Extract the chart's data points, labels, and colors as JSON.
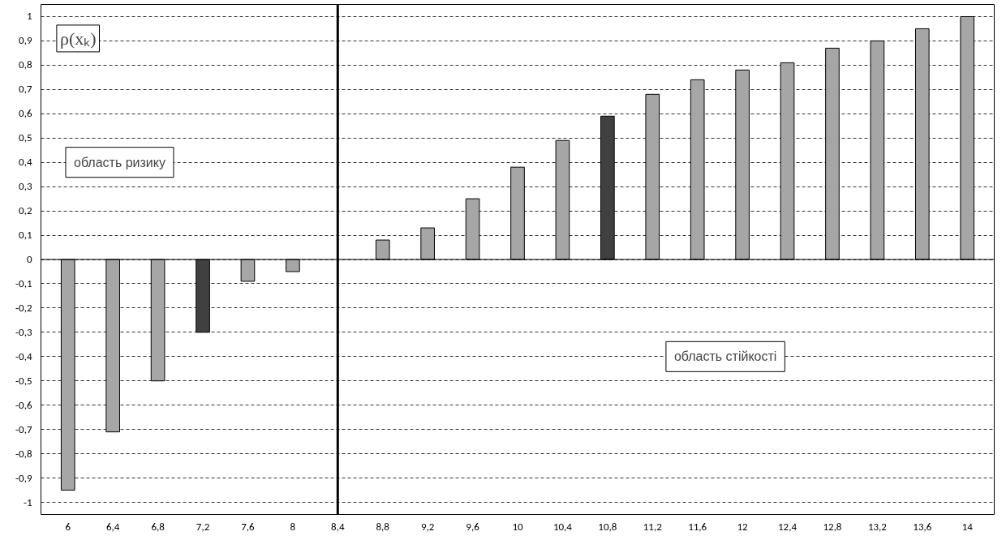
{
  "chart_data": {
    "type": "bar",
    "categories": [
      "6",
      "6,4",
      "6,8",
      "7,2",
      "7,6",
      "8",
      "8,4",
      "8,8",
      "9,2",
      "9,6",
      "10",
      "10,4",
      "10,8",
      "11,2",
      "11,6",
      "12",
      "12,4",
      "12,8",
      "13,2",
      "13,6",
      "14"
    ],
    "values": [
      -0.95,
      -0.71,
      -0.5,
      -0.3,
      -0.09,
      -0.05,
      null,
      0.08,
      0.13,
      0.25,
      0.38,
      0.49,
      0.59,
      0.68,
      0.74,
      0.78,
      0.81,
      0.87,
      0.9,
      0.95,
      1.0
    ],
    "colors": [
      "#a6a6a6",
      "#a6a6a6",
      "#a6a6a6",
      "#404040",
      "#a6a6a6",
      "#a6a6a6",
      "#a6a6a6",
      "#a6a6a6",
      "#a6a6a6",
      "#a6a6a6",
      "#a6a6a6",
      "#a6a6a6",
      "#404040",
      "#a6a6a6",
      "#a6a6a6",
      "#a6a6a6",
      "#a6a6a6",
      "#a6a6a6",
      "#a6a6a6",
      "#a6a6a6",
      "#a6a6a6"
    ],
    "ylim": [
      -1.05,
      1.05
    ],
    "yticks": [
      {
        "value": -1,
        "label": "-1"
      },
      {
        "value": -0.9,
        "label": "-0,9"
      },
      {
        "value": -0.8,
        "label": "-0,8"
      },
      {
        "value": -0.7,
        "label": "-0,7"
      },
      {
        "value": -0.6,
        "label": "-0,6"
      },
      {
        "value": -0.5,
        "label": "-0,5"
      },
      {
        "value": -0.4,
        "label": "-0,4"
      },
      {
        "value": -0.3,
        "label": "-0,3"
      },
      {
        "value": -0.2,
        "label": "-0,2"
      },
      {
        "value": -0.1,
        "label": "-0,1"
      },
      {
        "value": 0,
        "label": "0"
      },
      {
        "value": 0.1,
        "label": "0,1"
      },
      {
        "value": 0.2,
        "label": "0,2"
      },
      {
        "value": 0.3,
        "label": "0,3"
      },
      {
        "value": 0.4,
        "label": "0,4"
      },
      {
        "value": 0.5,
        "label": "0,5"
      },
      {
        "value": 0.6,
        "label": "0,6"
      },
      {
        "value": 0.7,
        "label": "0,7"
      },
      {
        "value": 0.8,
        "label": "0,8"
      },
      {
        "value": 0.9,
        "label": "0,9"
      },
      {
        "value": 1,
        "label": "1"
      }
    ],
    "grid": "y",
    "ref_lines": [
      {
        "axis": "x",
        "value": "8,4",
        "color": "#000000"
      }
    ],
    "annotations": [
      "ρ(xₖ)",
      "область ризику",
      "область стійкості"
    ]
  }
}
